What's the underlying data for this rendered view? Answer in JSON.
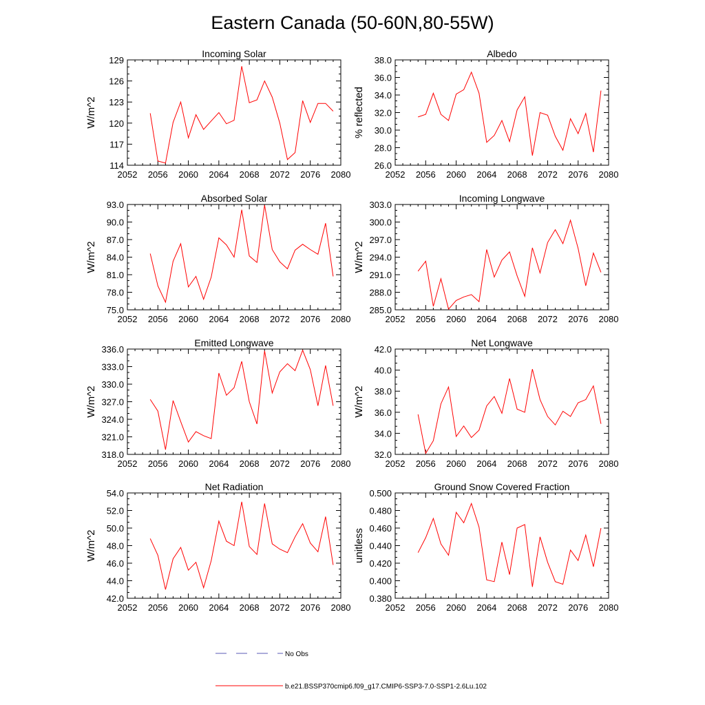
{
  "figure": {
    "title": "Eastern Canada (50-60N,80-55W)",
    "legend": [
      {
        "label": "No Obs",
        "color": "#5a5ab4",
        "style": "dashed"
      },
      {
        "label": "b.e21.BSSP370cmip6.f09_g17.CMIP6-SSP3-7.0-SSP1-2.6Lu.102",
        "color": "#ff0000",
        "style": "solid"
      }
    ]
  },
  "chart_data": [
    {
      "type": "line",
      "title": "Incoming Solar",
      "ylabel": "W/m^2",
      "xlabel": "",
      "xlim": [
        2052,
        2080
      ],
      "ylim": [
        114,
        129
      ],
      "xticks": [
        "2052",
        "2056",
        "2060",
        "2064",
        "2068",
        "2072",
        "2076",
        "2080"
      ],
      "yticks": [
        "114",
        "117",
        "120",
        "123",
        "126",
        "129"
      ],
      "series": [
        {
          "color": "#ff0000",
          "x": [
            2055,
            2056,
            2057,
            2058,
            2059,
            2060,
            2061,
            2062,
            2063,
            2064,
            2065,
            2066,
            2067,
            2068,
            2069,
            2070,
            2071,
            2072,
            2073,
            2074,
            2075,
            2076,
            2077,
            2078,
            2079
          ],
          "values": [
            121.4,
            114.6,
            114.3,
            120.1,
            123.0,
            117.9,
            121.2,
            119.1,
            120.3,
            121.5,
            119.9,
            120.4,
            128.1,
            122.9,
            123.3,
            126.0,
            123.7,
            120.0,
            114.8,
            115.8,
            123.2,
            120.1,
            122.8,
            122.8,
            121.7
          ]
        }
      ]
    },
    {
      "type": "line",
      "title": "Albedo",
      "ylabel": "% reflected",
      "xlabel": "",
      "xlim": [
        2052,
        2080
      ],
      "ylim": [
        26.0,
        38.0
      ],
      "xticks": [
        "2052",
        "2056",
        "2060",
        "2064",
        "2068",
        "2072",
        "2076",
        "2080"
      ],
      "yticks": [
        "26.0",
        "28.0",
        "30.0",
        "32.0",
        "34.0",
        "36.0",
        "38.0"
      ],
      "series": [
        {
          "color": "#ff0000",
          "x": [
            2055,
            2056,
            2057,
            2058,
            2059,
            2060,
            2061,
            2062,
            2063,
            2064,
            2065,
            2066,
            2067,
            2068,
            2069,
            2070,
            2071,
            2072,
            2073,
            2074,
            2075,
            2076,
            2077,
            2078,
            2079
          ],
          "values": [
            31.5,
            31.8,
            34.2,
            31.8,
            31.1,
            34.1,
            34.6,
            36.6,
            34.2,
            28.6,
            29.4,
            31.1,
            28.7,
            32.3,
            33.8,
            27.1,
            32.0,
            31.7,
            29.3,
            27.7,
            31.3,
            29.6,
            31.9,
            27.5,
            34.5
          ]
        }
      ]
    },
    {
      "type": "line",
      "title": "Absorbed Solar",
      "ylabel": "W/m^2",
      "xlabel": "",
      "xlim": [
        2052,
        2080
      ],
      "ylim": [
        75.0,
        93.0
      ],
      "xticks": [
        "2052",
        "2056",
        "2060",
        "2064",
        "2068",
        "2072",
        "2076",
        "2080"
      ],
      "yticks": [
        "75.0",
        "78.0",
        "81.0",
        "84.0",
        "87.0",
        "90.0",
        "93.0"
      ],
      "series": [
        {
          "color": "#ff0000",
          "x": [
            2055,
            2056,
            2057,
            2058,
            2059,
            2060,
            2061,
            2062,
            2063,
            2064,
            2065,
            2066,
            2067,
            2068,
            2069,
            2070,
            2071,
            2072,
            2073,
            2074,
            2075,
            2076,
            2077,
            2078,
            2079
          ],
          "values": [
            84.6,
            79.1,
            76.3,
            83.3,
            86.3,
            78.9,
            80.7,
            76.8,
            80.6,
            87.3,
            86.1,
            84.0,
            92.1,
            84.2,
            83.1,
            92.9,
            85.3,
            83.2,
            82.0,
            85.2,
            86.2,
            85.3,
            84.5,
            89.8,
            80.7
          ]
        }
      ]
    },
    {
      "type": "line",
      "title": "Incoming Longwave",
      "ylabel": "W/m^2",
      "xlabel": "",
      "xlim": [
        2052,
        2080
      ],
      "ylim": [
        285.0,
        303.0
      ],
      "xticks": [
        "2052",
        "2056",
        "2060",
        "2064",
        "2068",
        "2072",
        "2076",
        "2080"
      ],
      "yticks": [
        "285.0",
        "288.0",
        "291.0",
        "294.0",
        "297.0",
        "300.0",
        "303.0"
      ],
      "series": [
        {
          "color": "#ff0000",
          "x": [
            2055,
            2056,
            2057,
            2058,
            2059,
            2060,
            2061,
            2062,
            2063,
            2064,
            2065,
            2066,
            2067,
            2068,
            2069,
            2070,
            2071,
            2072,
            2073,
            2074,
            2075,
            2076,
            2077,
            2078,
            2079
          ],
          "values": [
            291.6,
            293.3,
            285.6,
            290.3,
            285.1,
            286.6,
            287.2,
            287.6,
            286.4,
            295.3,
            290.6,
            293.5,
            294.9,
            290.8,
            287.3,
            295.6,
            291.3,
            296.5,
            298.7,
            296.3,
            300.3,
            295.5,
            289.1,
            294.7,
            291.4
          ]
        }
      ]
    },
    {
      "type": "line",
      "title": "Emitted Longwave",
      "ylabel": "W/m^2",
      "xlabel": "",
      "xlim": [
        2052,
        2080
      ],
      "ylim": [
        318.0,
        336.0
      ],
      "xticks": [
        "2052",
        "2056",
        "2060",
        "2064",
        "2068",
        "2072",
        "2076",
        "2080"
      ],
      "yticks": [
        "318.0",
        "321.0",
        "324.0",
        "327.0",
        "330.0",
        "333.0",
        "336.0"
      ],
      "series": [
        {
          "color": "#ff0000",
          "x": [
            2055,
            2056,
            2057,
            2058,
            2059,
            2060,
            2061,
            2062,
            2063,
            2064,
            2065,
            2066,
            2067,
            2068,
            2069,
            2070,
            2071,
            2072,
            2073,
            2074,
            2075,
            2076,
            2077,
            2078,
            2079
          ],
          "values": [
            327.4,
            325.4,
            318.8,
            327.2,
            323.6,
            320.1,
            321.9,
            321.2,
            320.7,
            331.9,
            328.1,
            329.4,
            333.9,
            327.0,
            323.2,
            335.7,
            328.5,
            332.1,
            333.5,
            332.3,
            335.8,
            332.5,
            326.3,
            333.2,
            326.3
          ]
        }
      ]
    },
    {
      "type": "line",
      "title": "Net Longwave",
      "ylabel": "W/m^2",
      "xlabel": "",
      "xlim": [
        2052,
        2080
      ],
      "ylim": [
        32.0,
        42.0
      ],
      "xticks": [
        "2052",
        "2056",
        "2060",
        "2064",
        "2068",
        "2072",
        "2076",
        "2080"
      ],
      "yticks": [
        "32.0",
        "34.0",
        "36.0",
        "38.0",
        "40.0",
        "42.0"
      ],
      "series": [
        {
          "color": "#ff0000",
          "x": [
            2055,
            2056,
            2057,
            2058,
            2059,
            2060,
            2061,
            2062,
            2063,
            2064,
            2065,
            2066,
            2067,
            2068,
            2069,
            2070,
            2071,
            2072,
            2073,
            2074,
            2075,
            2076,
            2077,
            2078,
            2079
          ],
          "values": [
            35.8,
            32.1,
            33.3,
            36.8,
            38.4,
            33.7,
            34.7,
            33.6,
            34.3,
            36.6,
            37.5,
            35.9,
            39.2,
            36.3,
            36.0,
            40.1,
            37.2,
            35.6,
            34.8,
            36.1,
            35.6,
            36.9,
            37.2,
            38.5,
            34.9
          ]
        }
      ]
    },
    {
      "type": "line",
      "title": "Net Radiation",
      "ylabel": "W/m^2",
      "xlabel": "",
      "xlim": [
        2052,
        2080
      ],
      "ylim": [
        42.0,
        54.0
      ],
      "xticks": [
        "2052",
        "2056",
        "2060",
        "2064",
        "2068",
        "2072",
        "2076",
        "2080"
      ],
      "yticks": [
        "42.0",
        "44.0",
        "46.0",
        "48.0",
        "50.0",
        "52.0",
        "54.0"
      ],
      "series": [
        {
          "color": "#ff0000",
          "x": [
            2055,
            2056,
            2057,
            2058,
            2059,
            2060,
            2061,
            2062,
            2063,
            2064,
            2065,
            2066,
            2067,
            2068,
            2069,
            2070,
            2071,
            2072,
            2073,
            2074,
            2075,
            2076,
            2077,
            2078,
            2079
          ],
          "values": [
            48.8,
            46.9,
            43.0,
            46.5,
            47.8,
            45.2,
            46.1,
            43.2,
            46.3,
            50.8,
            48.5,
            48.0,
            53.0,
            47.9,
            47.0,
            52.8,
            48.2,
            47.6,
            47.2,
            49.0,
            50.5,
            48.3,
            47.3,
            51.3,
            45.8
          ]
        }
      ]
    },
    {
      "type": "line",
      "title": "Ground Snow Covered Fraction",
      "ylabel": "unitless",
      "xlabel": "",
      "xlim": [
        2052,
        2080
      ],
      "ylim": [
        0.38,
        0.5
      ],
      "xticks": [
        "2052",
        "2056",
        "2060",
        "2064",
        "2068",
        "2072",
        "2076",
        "2080"
      ],
      "yticks": [
        "0.380",
        "0.400",
        "0.420",
        "0.440",
        "0.460",
        "0.480",
        "0.500"
      ],
      "series": [
        {
          "color": "#ff0000",
          "x": [
            2055,
            2056,
            2057,
            2058,
            2059,
            2060,
            2061,
            2062,
            2063,
            2064,
            2065,
            2066,
            2067,
            2068,
            2069,
            2070,
            2071,
            2072,
            2073,
            2074,
            2075,
            2076,
            2077,
            2078,
            2079
          ],
          "values": [
            0.432,
            0.449,
            0.471,
            0.442,
            0.429,
            0.478,
            0.466,
            0.488,
            0.461,
            0.401,
            0.399,
            0.444,
            0.407,
            0.46,
            0.464,
            0.393,
            0.45,
            0.421,
            0.399,
            0.396,
            0.435,
            0.423,
            0.452,
            0.416,
            0.46
          ]
        }
      ]
    }
  ]
}
